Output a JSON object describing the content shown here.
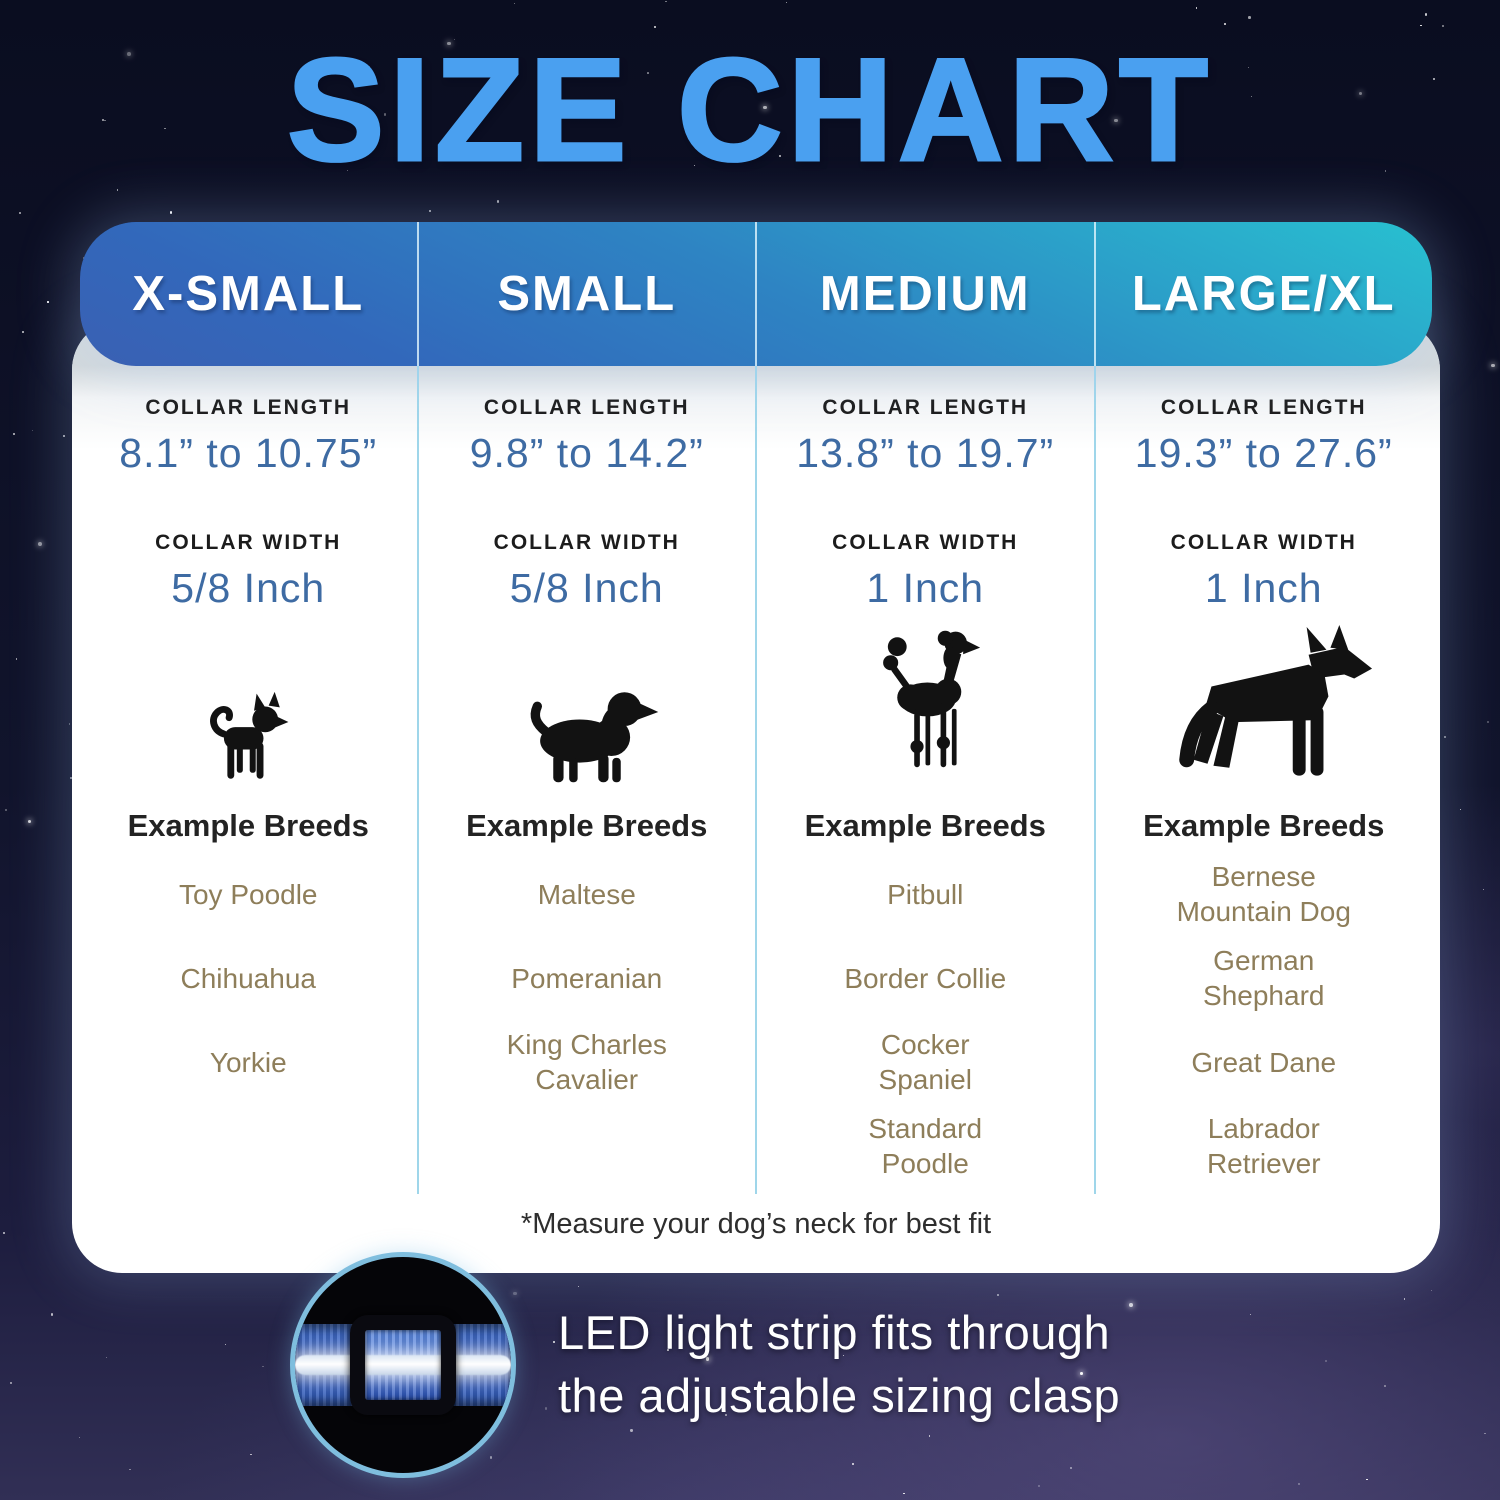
{
  "title": "SIZE CHART",
  "card": {
    "labels": {
      "collar_length": "COLLAR LENGTH",
      "collar_width": "COLLAR WIDTH",
      "example_breeds": "Example Breeds"
    },
    "footnote": "*Measure your dog’s neck for best fit",
    "columns": [
      {
        "size": "X-SMALL",
        "length": "8.1” to 10.75”",
        "width": "5/8 Inch",
        "dog_icon": "chihuahua-icon",
        "breeds": [
          "Toy Poodle",
          "Chihuahua",
          "Yorkie"
        ]
      },
      {
        "size": "SMALL",
        "length": "9.8” to 14.2”",
        "width": "5/8 Inch",
        "dog_icon": "cavalier-king-charles-icon",
        "breeds": [
          "Maltese",
          "Pomeranian",
          "King Charles Cavalier"
        ]
      },
      {
        "size": "MEDIUM",
        "length": "13.8” to 19.7”",
        "width": "1 Inch",
        "dog_icon": "standard-poodle-icon",
        "breeds": [
          "Pitbull",
          "Border Collie",
          "Cocker Spaniel",
          "Standard Poodle"
        ]
      },
      {
        "size": "LARGE/XL",
        "length": "19.3” to 27.6”",
        "width": "1 Inch",
        "dog_icon": "german-shepherd-icon",
        "breeds": [
          "Bernese Mountain Dog",
          "German Shephard",
          "Great Dane",
          "Labrador Retriever"
        ]
      }
    ]
  },
  "callout": {
    "lines": [
      "LED light strip fits through",
      "the adjustable sizing clasp"
    ],
    "image": "collar-clasp-photo"
  },
  "colors": {
    "title_blue": "#4aa0f0",
    "header_teal": "#28c0d0",
    "header_mid": "#2e84c3",
    "header_blue": "#3a60b3",
    "value_blue": "#3e6ba3",
    "breed_tan": "#8e7e5a",
    "divider_blue": "#9fd6ea",
    "label_dark": "#1c1c1c",
    "ring_blue": "#7fbede",
    "strap_blue": "#2b55b8",
    "sky_top": "#0a0d20",
    "sky_bottom": "#312f55"
  }
}
